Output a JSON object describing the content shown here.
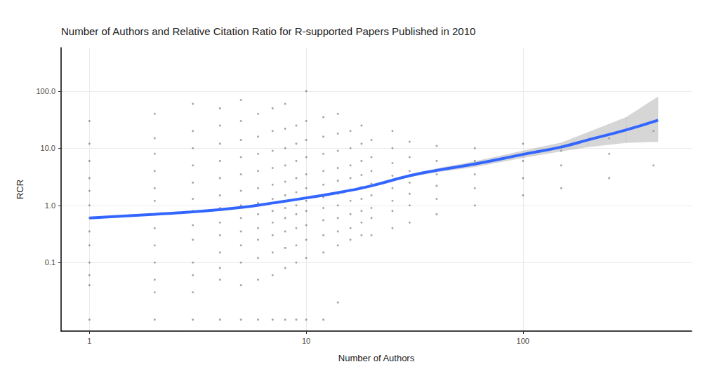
{
  "chart_data": {
    "type": "scatter",
    "title": "Number of Authors and Relative Citation Ratio for R-supported Papers Published in 2010",
    "x_label": "Number of Authors",
    "y_label": "RCR",
    "log": true,
    "grid": true,
    "xlim": [
      0.74,
      600
    ],
    "xticks": [
      1,
      10,
      100
    ],
    "ylim": [
      0.0063,
      575
    ],
    "yticks": [
      {
        "value": 0.1,
        "label": "0.1"
      },
      {
        "value": 1,
        "label": "1.0"
      },
      {
        "value": 10,
        "label": "10.0"
      },
      {
        "value": 100,
        "label": "100.0"
      }
    ],
    "series": [
      {
        "type": "scatter",
        "color": "#000000",
        "x": [
          1,
          1,
          1,
          1,
          1,
          1,
          1,
          1,
          1,
          1,
          1,
          1,
          1,
          2,
          2,
          2,
          2,
          2,
          2,
          2,
          2,
          2,
          2,
          2,
          2,
          2,
          3,
          3,
          3,
          3,
          3,
          3,
          3,
          3,
          3,
          3,
          3,
          3,
          3,
          4,
          4,
          4,
          4,
          4,
          4,
          4,
          4,
          4,
          4,
          4,
          4,
          4,
          5,
          5,
          5,
          5,
          5,
          5,
          5,
          5,
          5,
          5,
          5,
          5,
          5,
          6,
          6,
          6,
          6,
          6,
          6,
          6,
          6,
          6,
          6,
          6,
          6,
          7,
          7,
          7,
          7,
          7,
          7,
          7,
          7,
          7,
          7,
          7,
          7,
          8,
          8,
          8,
          8,
          8,
          8,
          8,
          8,
          8,
          8,
          8,
          8,
          9,
          9,
          9,
          9,
          9,
          9,
          9,
          9,
          9,
          9,
          9,
          10,
          10,
          10,
          10,
          10,
          10,
          10,
          10,
          10,
          10,
          10,
          10,
          12,
          12,
          12,
          12,
          12,
          12,
          12,
          12,
          12,
          12,
          12,
          14,
          14,
          14,
          14,
          14,
          14,
          14,
          14,
          14,
          14,
          14,
          16,
          16,
          16,
          16,
          16,
          16,
          16,
          16,
          16,
          18,
          18,
          18,
          18,
          18,
          18,
          18,
          18,
          18,
          20,
          20,
          20,
          20,
          20,
          20,
          20,
          20,
          25,
          25,
          25,
          25,
          25,
          25,
          25,
          25,
          30,
          30,
          30,
          30,
          30,
          30,
          30,
          40,
          40,
          40,
          40,
          40,
          40,
          60,
          60,
          60,
          60,
          60,
          100,
          100,
          100,
          100,
          150,
          150,
          150,
          250,
          250,
          250,
          400,
          400
        ],
        "values": [
          0.01,
          0.04,
          0.06,
          0.1,
          0.2,
          0.35,
          0.6,
          1,
          1.8,
          3,
          6,
          12,
          30,
          0.01,
          0.03,
          0.05,
          0.1,
          0.2,
          0.4,
          0.7,
          1.2,
          2,
          4,
          8,
          15,
          40,
          0.01,
          0.03,
          0.06,
          0.1,
          0.25,
          0.45,
          0.8,
          1.3,
          2.5,
          5,
          10,
          20,
          60,
          0.01,
          0.05,
          0.08,
          0.15,
          0.3,
          0.5,
          0.9,
          1.5,
          3,
          6,
          12,
          25,
          50,
          0.01,
          0.04,
          0.1,
          0.2,
          0.35,
          0.6,
          1,
          1.8,
          3.5,
          7,
          14,
          30,
          70,
          0.01,
          0.05,
          0.12,
          0.25,
          0.4,
          0.7,
          1.1,
          2,
          4,
          8,
          16,
          40,
          0.01,
          0.06,
          0.15,
          0.3,
          0.5,
          0.8,
          1.3,
          2.3,
          4.5,
          9,
          20,
          50,
          0.01,
          0.08,
          0.18,
          0.35,
          0.6,
          0.9,
          1.5,
          2.6,
          5,
          10,
          22,
          60,
          0.01,
          0.1,
          0.2,
          0.4,
          0.7,
          1,
          1.7,
          3,
          6,
          12,
          25,
          0.01,
          0.12,
          0.25,
          0.45,
          0.8,
          1.2,
          2,
          3.5,
          7,
          14,
          30,
          100,
          0.01,
          0.15,
          0.3,
          0.55,
          0.9,
          1.4,
          2.3,
          4,
          8,
          16,
          35,
          0.02,
          0.2,
          0.35,
          0.6,
          1,
          1.6,
          2.7,
          4.5,
          9,
          18,
          40,
          0.25,
          0.4,
          0.7,
          1.2,
          1.9,
          3,
          5,
          10,
          20,
          0.3,
          0.5,
          0.8,
          1.3,
          2.1,
          3.4,
          6,
          12,
          25,
          0.3,
          0.6,
          0.9,
          1.5,
          2.4,
          4,
          7,
          14,
          0.4,
          0.8,
          1.2,
          2,
          3.3,
          5.5,
          10,
          20,
          0.5,
          1,
          1.6,
          2.5,
          4,
          7,
          13,
          0.7,
          1.3,
          2.2,
          3.5,
          6,
          11,
          1,
          2,
          3.5,
          6,
          10,
          1.5,
          3,
          6,
          12,
          2,
          5,
          9,
          3,
          8,
          15,
          5,
          20
        ]
      },
      {
        "type": "line",
        "color": "#3366FF",
        "x": [
          1,
          2,
          3,
          5,
          7,
          10,
          15,
          20,
          30,
          40,
          60,
          100,
          150,
          200,
          300,
          420
        ],
        "values": [
          0.6,
          0.7,
          0.77,
          0.92,
          1.1,
          1.35,
          1.75,
          2.2,
          3.3,
          4.1,
          5.3,
          7.8,
          10.5,
          14,
          21,
          31
        ],
        "lower": [
          0.58,
          0.68,
          0.76,
          0.91,
          1.08,
          1.33,
          1.72,
          2.15,
          3.15,
          3.8,
          4.7,
          6.8,
          8.8,
          10.5,
          12.5,
          13
        ],
        "upper": [
          0.62,
          0.72,
          0.78,
          0.93,
          1.12,
          1.37,
          1.78,
          2.25,
          3.45,
          4.4,
          5.9,
          9,
          12.5,
          19,
          35,
          80
        ]
      }
    ]
  }
}
